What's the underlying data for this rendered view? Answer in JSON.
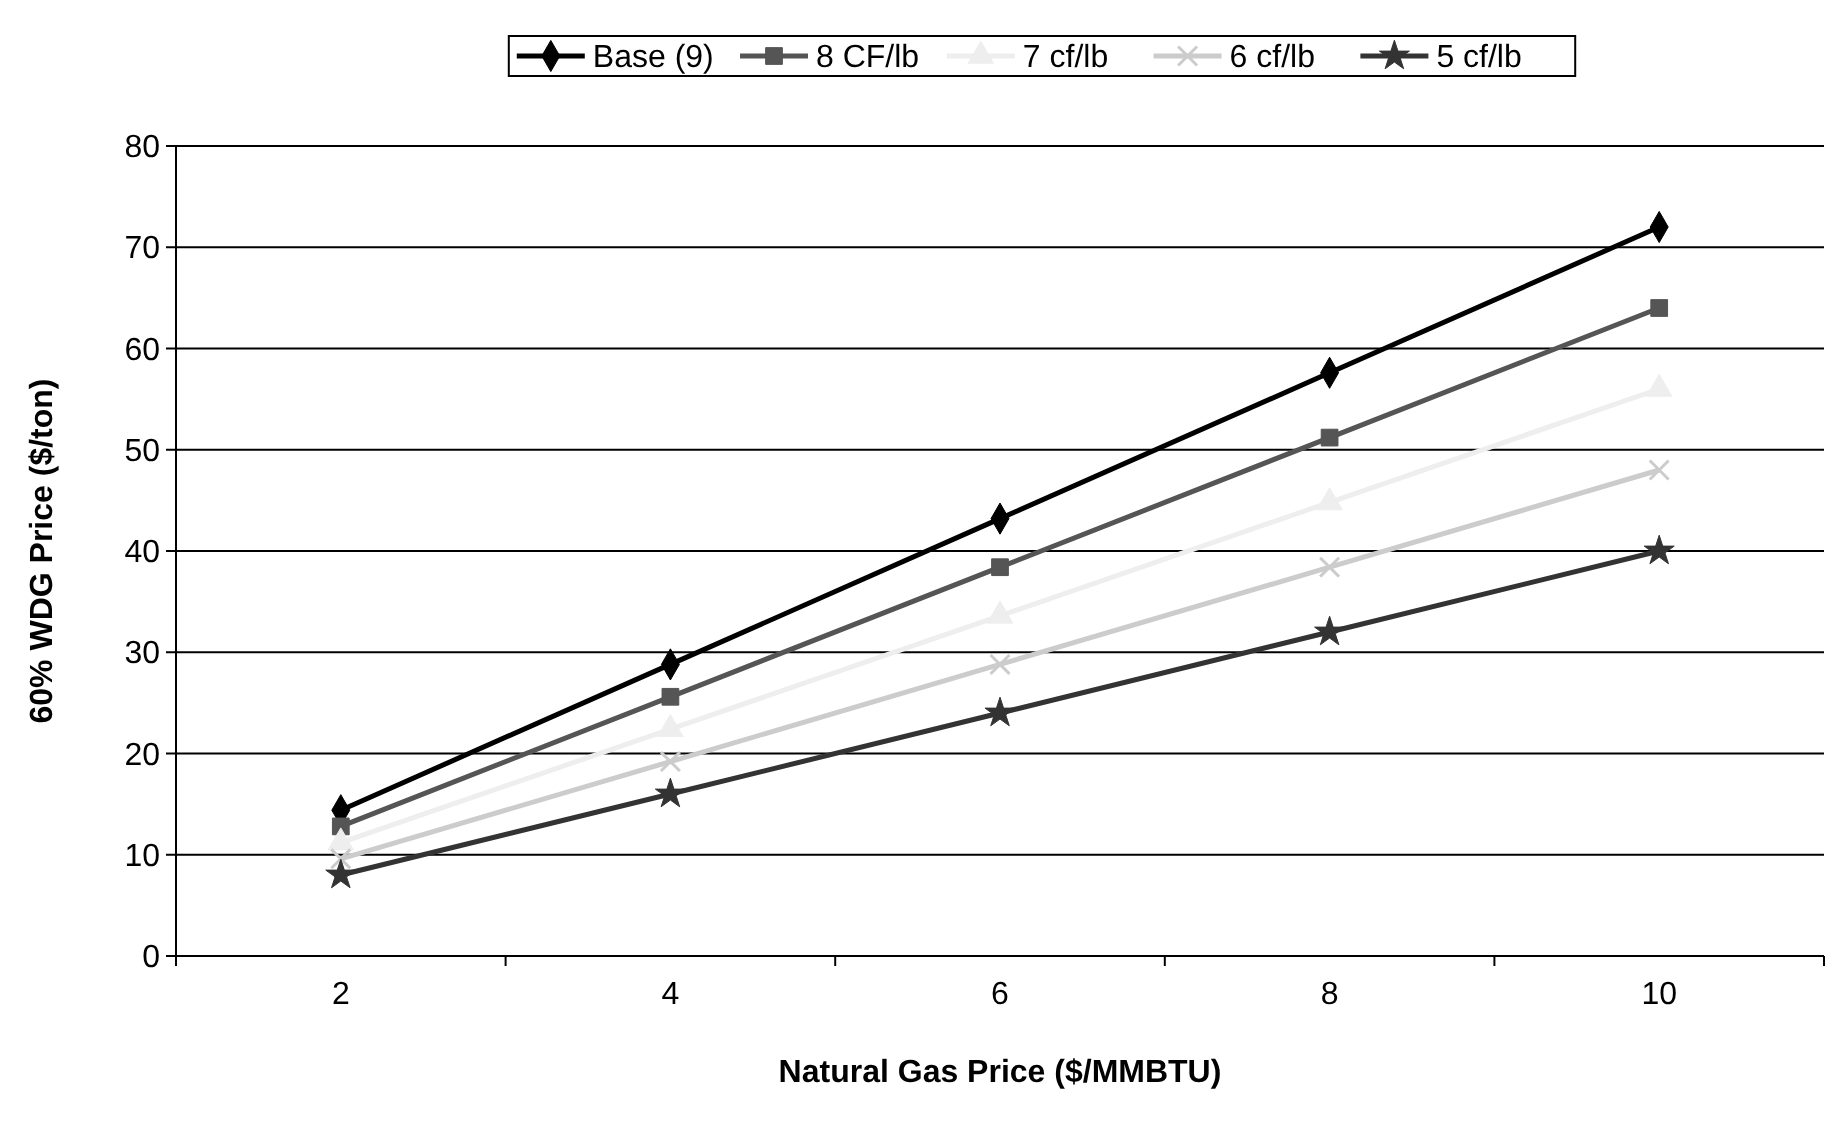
{
  "chart_data": {
    "type": "line",
    "xlabel": "Natural Gas Price ($/MMBTU)",
    "ylabel": "60% WDG Price ($/ton)",
    "categories": [
      "2",
      "4",
      "6",
      "8",
      "10"
    ],
    "ylim": [
      0,
      80
    ],
    "yticks": [
      0,
      10,
      20,
      30,
      40,
      50,
      60,
      70,
      80
    ],
    "grid": "y",
    "legend": "top",
    "line_style": "solid",
    "series": [
      {
        "name": "Base (9)",
        "color": "#000000",
        "marker": "diamond",
        "values": [
          14.4,
          28.8,
          43.2,
          57.6,
          72
        ]
      },
      {
        "name": "8 CF/lb",
        "color": "#555555",
        "marker": "square",
        "values": [
          12.8,
          25.6,
          38.4,
          51.2,
          64
        ]
      },
      {
        "name": "7 cf/lb",
        "color": "#eeeeee",
        "marker": "triangle",
        "values": [
          11.2,
          22.4,
          33.6,
          44.8,
          56
        ]
      },
      {
        "name": "6 cf/lb",
        "color": "#cccccc",
        "marker": "cross",
        "values": [
          9.6,
          19.2,
          28.8,
          38.4,
          48
        ]
      },
      {
        "name": "5 cf/lb",
        "color": "#333333",
        "marker": "star",
        "values": [
          8,
          16,
          24,
          32,
          40
        ]
      }
    ]
  }
}
